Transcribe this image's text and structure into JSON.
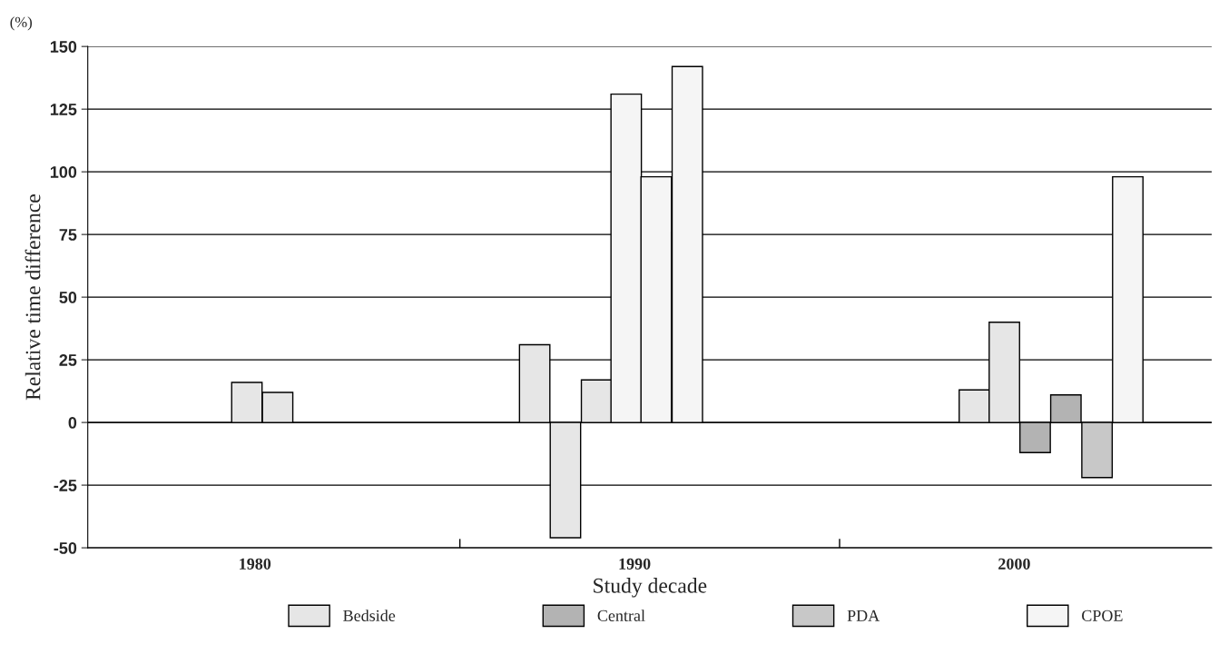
{
  "chart_data": {
    "type": "bar",
    "xlabel": "Study decade",
    "ylabel": "Relative time difference",
    "annotations": [
      "(%)"
    ],
    "xlim": [
      1975.6,
      2005.2
    ],
    "xticks": [
      1980,
      {
        "value": 1985.4,
        "label": null
      },
      1990,
      {
        "value": 1995.4,
        "label": null
      },
      2000
    ],
    "ylim": [
      -50,
      150
    ],
    "yticks": [
      -50,
      -25,
      0,
      25,
      50,
      75,
      100,
      125,
      150
    ],
    "grid": "y",
    "legend": "bottom",
    "series": [
      {
        "name": "Bedside",
        "color": "#e6e6e6",
        "x": [
          1979.79,
          1980.6,
          1987.37,
          1988.18,
          1989.0,
          1998.95,
          1999.74
        ],
        "values": [
          16,
          12,
          31,
          -46,
          17,
          13,
          40
        ]
      },
      {
        "name": "Central",
        "color": "#b3b3b3",
        "x": [
          2000.55,
          2001.36
        ],
        "values": [
          -12,
          11
        ]
      },
      {
        "name": "PDA",
        "color": "#c8c8c8",
        "x": [
          2002.18
        ],
        "values": [
          -22
        ]
      },
      {
        "name": "CPOE",
        "color": "#f5f5f5",
        "x": [
          1989.78,
          1990.57,
          1991.39,
          2002.99
        ],
        "values": [
          131,
          98,
          142,
          98
        ]
      }
    ]
  }
}
